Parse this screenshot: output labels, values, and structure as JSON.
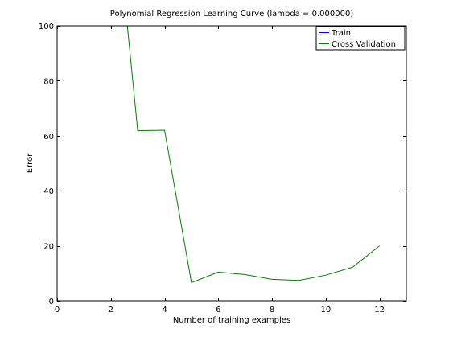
{
  "chart_data": {
    "type": "line",
    "title": "Polynomial Regression Learning Curve (lambda = 0.000000)",
    "xlabel": "Number of training examples",
    "ylabel": "Error",
    "xlim": [
      0,
      13
    ],
    "ylim": [
      0,
      100
    ],
    "xticks": [
      0,
      2,
      4,
      6,
      8,
      10,
      12
    ],
    "yticks": [
      0,
      20,
      40,
      60,
      80,
      100
    ],
    "grid": false,
    "legend_position": "top-right",
    "series": [
      {
        "name": "Train",
        "color": "#0000ff",
        "x": [
          1,
          2,
          3,
          4,
          5,
          6,
          7,
          8,
          9,
          10,
          11,
          12
        ],
        "y": [
          0,
          0,
          0,
          0,
          0,
          0,
          0,
          0,
          0,
          0,
          0,
          0
        ]
      },
      {
        "name": "Cross Validation",
        "color": "#008000",
        "x": [
          2,
          3,
          4,
          5,
          6,
          7,
          8,
          9,
          10,
          11,
          12
        ],
        "y": [
          160.7,
          61.8,
          62.0,
          6.6,
          10.4,
          9.5,
          7.8,
          7.4,
          9.3,
          12.2,
          20.0
        ]
      }
    ]
  }
}
